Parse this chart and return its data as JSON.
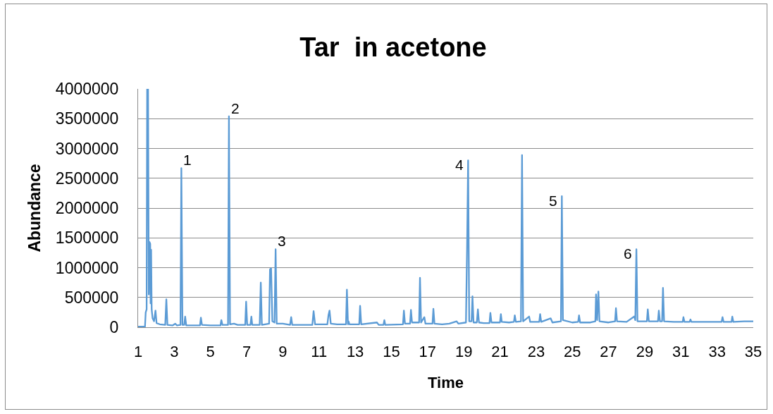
{
  "chart_data": {
    "type": "line",
    "title": "Tar  in acetone",
    "xlabel": "Time",
    "ylabel": "Abundance",
    "xlim": [
      1,
      35
    ],
    "xticks": [
      1,
      3,
      5,
      7,
      9,
      11,
      13,
      15,
      17,
      19,
      21,
      23,
      25,
      27,
      29,
      31,
      33,
      35
    ],
    "ylim": [
      0,
      4000000
    ],
    "yticks": [
      0,
      500000,
      1000000,
      1500000,
      2000000,
      2500000,
      3000000,
      3500000,
      4000000
    ],
    "grid": "y",
    "color": "#5b9bd5",
    "x": [
      1.0,
      1.38,
      1.42,
      1.47,
      1.5,
      1.55,
      1.59,
      1.63,
      1.67,
      1.69,
      1.72,
      1.75,
      1.8,
      1.88,
      1.96,
      2.02,
      2.2,
      2.5,
      2.56,
      2.62,
      2.9,
      3.05,
      3.15,
      3.34,
      3.39,
      3.45,
      3.55,
      3.6,
      3.66,
      4.0,
      4.42,
      4.47,
      4.53,
      5.0,
      5.55,
      5.6,
      5.66,
      5.97,
      6.02,
      6.08,
      6.3,
      6.5,
      6.92,
      6.97,
      7.03,
      7.21,
      7.26,
      7.31,
      7.72,
      7.78,
      7.84,
      8.24,
      8.29,
      8.35,
      8.42,
      8.54,
      8.6,
      8.66,
      9.0,
      9.4,
      9.46,
      9.52,
      10.0,
      10.63,
      10.7,
      10.78,
      11.46,
      11.52,
      11.58,
      11.65,
      12.0,
      12.49,
      12.54,
      12.6,
      12.63,
      12.68,
      13.22,
      13.27,
      13.33,
      14.2,
      14.3,
      14.56,
      14.61,
      14.66,
      15.64,
      15.69,
      15.75,
      16.03,
      16.08,
      16.14,
      16.53,
      16.58,
      16.64,
      16.82,
      16.88,
      17.27,
      17.32,
      17.38,
      17.8,
      18.2,
      18.6,
      18.7,
      19.12,
      19.18,
      19.24,
      19.3,
      19.43,
      19.48,
      19.54,
      19.72,
      19.78,
      19.84,
      20.1,
      20.42,
      20.47,
      20.53,
      21.0,
      21.05,
      21.1,
      21.5,
      21.77,
      21.82,
      21.88,
      22.16,
      22.22,
      22.28,
      22.61,
      22.67,
      23.17,
      23.22,
      23.28,
      23.8,
      23.9,
      24.37,
      24.42,
      24.48,
      25.0,
      25.32,
      25.37,
      25.43,
      26.0,
      26.27,
      26.31,
      26.37,
      26.44,
      26.5,
      27.0,
      27.36,
      27.41,
      27.47,
      28.0,
      28.42,
      28.48,
      28.54,
      28.6,
      29.12,
      29.17,
      29.23,
      29.73,
      29.78,
      29.84,
      29.96,
      30.01,
      30.07,
      30.6,
      31.1,
      31.14,
      31.2,
      31.48,
      31.53,
      31.58,
      32.5,
      33.25,
      33.3,
      33.36,
      33.8,
      33.84,
      33.9,
      34.5,
      35.0
    ],
    "values": [
      10000,
      10000,
      250000,
      300000,
      4000000,
      4000000,
      550000,
      1430000,
      1400000,
      400000,
      1300000,
      300000,
      150000,
      100000,
      280000,
      70000,
      50000,
      40000,
      470000,
      40000,
      30000,
      60000,
      30000,
      40000,
      2670000,
      40000,
      40000,
      180000,
      30000,
      30000,
      30000,
      160000,
      40000,
      30000,
      30000,
      120000,
      40000,
      40000,
      3540000,
      50000,
      60000,
      40000,
      40000,
      430000,
      40000,
      40000,
      180000,
      40000,
      40000,
      750000,
      40000,
      60000,
      970000,
      990000,
      100000,
      80000,
      1310000,
      60000,
      60000,
      40000,
      170000,
      40000,
      40000,
      40000,
      270000,
      50000,
      50000,
      200000,
      280000,
      60000,
      50000,
      50000,
      630000,
      50000,
      100000,
      50000,
      50000,
      360000,
      50000,
      80000,
      40000,
      40000,
      120000,
      40000,
      50000,
      280000,
      60000,
      60000,
      290000,
      80000,
      80000,
      830000,
      80000,
      170000,
      60000,
      60000,
      310000,
      60000,
      50000,
      60000,
      100000,
      60000,
      80000,
      1300000,
      2800000,
      100000,
      100000,
      520000,
      80000,
      80000,
      300000,
      80000,
      70000,
      70000,
      240000,
      80000,
      80000,
      220000,
      90000,
      80000,
      90000,
      200000,
      90000,
      100000,
      2890000,
      100000,
      180000,
      90000,
      90000,
      220000,
      90000,
      150000,
      80000,
      100000,
      2200000,
      120000,
      80000,
      90000,
      200000,
      80000,
      80000,
      100000,
      550000,
      120000,
      600000,
      100000,
      80000,
      100000,
      320000,
      100000,
      90000,
      180000,
      120000,
      1310000,
      100000,
      100000,
      300000,
      100000,
      100000,
      280000,
      100000,
      100000,
      660000,
      100000,
      90000,
      90000,
      170000,
      90000,
      90000,
      130000,
      90000,
      90000,
      90000,
      170000,
      90000,
      90000,
      180000,
      90000,
      100000,
      100000
    ],
    "annotations": [
      {
        "text": "1",
        "x": 3.39,
        "y": 2670000
      },
      {
        "text": "2",
        "x": 6.02,
        "y": 3540000
      },
      {
        "text": "3",
        "x": 8.6,
        "y": 1310000
      },
      {
        "text": "4",
        "x": 19.24,
        "y": 2800000
      },
      {
        "text": "5",
        "x": 24.42,
        "y": 2200000
      },
      {
        "text": "6",
        "x": 28.54,
        "y": 1310000
      }
    ]
  }
}
